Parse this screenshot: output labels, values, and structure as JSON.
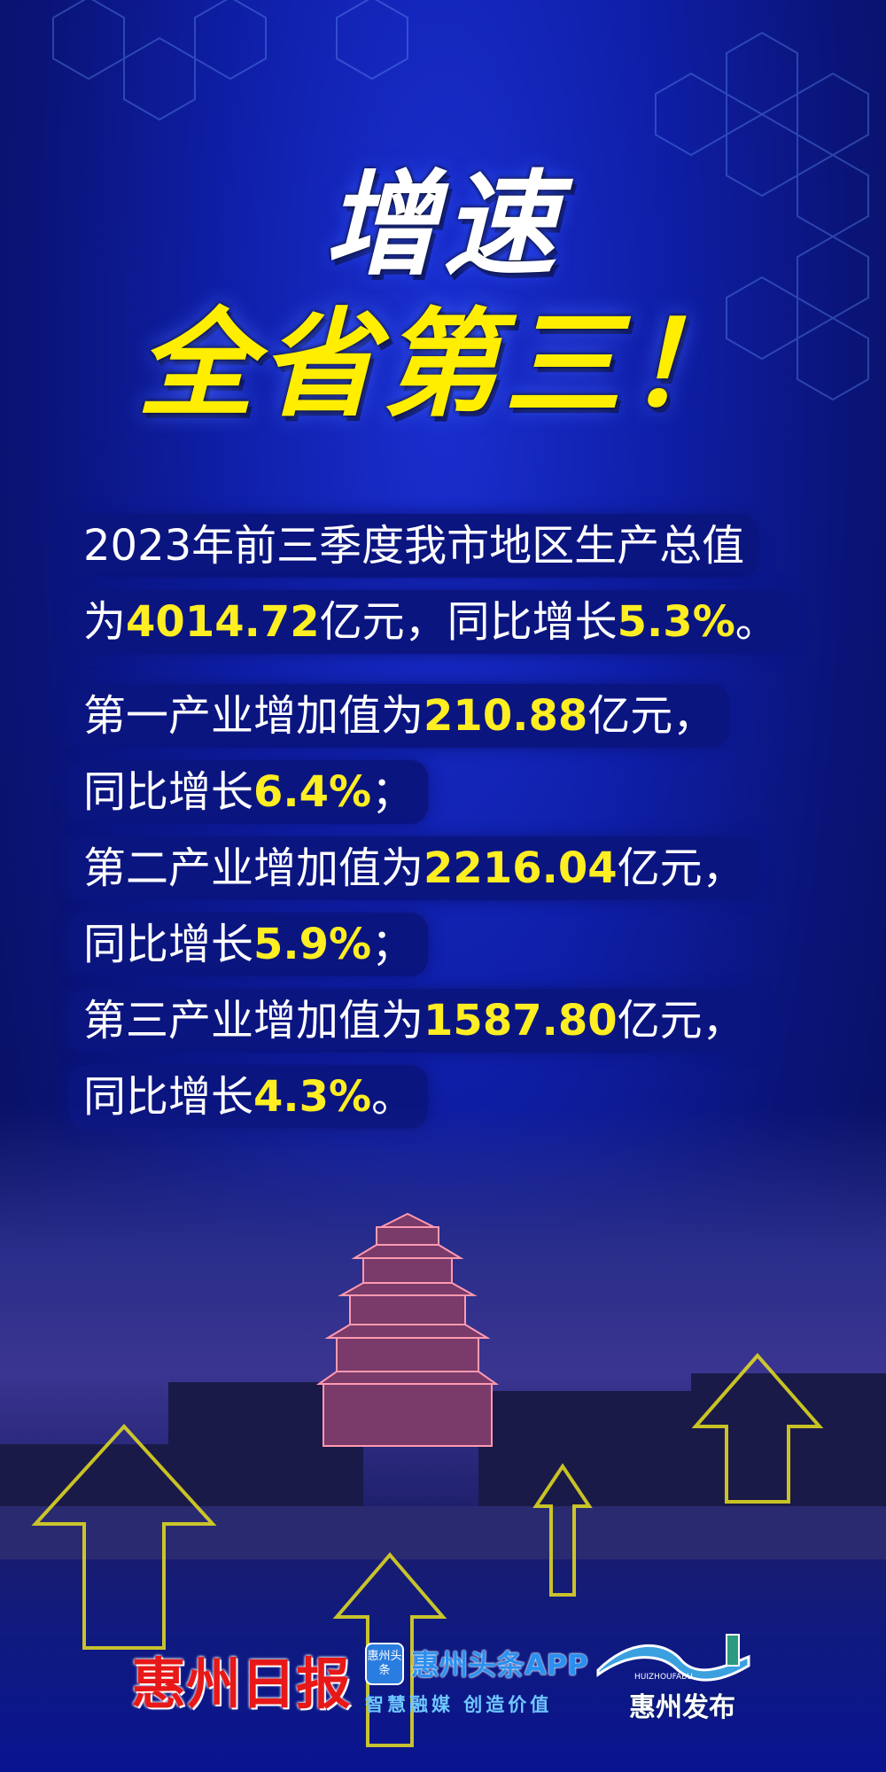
{
  "headline": {
    "line1": "增速",
    "line2": "全省第三！"
  },
  "body": {
    "p1a": "2023年前三季度我市地区生产总值",
    "p1b_pre": "为",
    "p1b_val": "4014.72",
    "p1b_mid": "亿元，同比增长",
    "p1b_pct": "5.3%",
    "p1b_end": "。",
    "rows": [
      {
        "pre": "第一产业增加值为",
        "val": "210.88",
        "unit": "亿元，",
        "g_pre": "同比增长",
        "pct": "6.4%",
        "end": "；"
      },
      {
        "pre": "第二产业增加值为",
        "val": "2216.04",
        "unit": "亿元，",
        "g_pre": "同比增长",
        "pct": "5.9%",
        "end": "；"
      },
      {
        "pre": "第三产业增加值为",
        "val": "1587.80",
        "unit": "亿元，",
        "g_pre": "同比增长",
        "pct": "4.3%",
        "end": "。"
      }
    ]
  },
  "logos": {
    "huizhou_daily": "惠州日报",
    "toutiao_icon": "惠州头条",
    "toutiao_name": "惠州头条APP",
    "toutiao_slogan": "智慧融媒 创造价值",
    "fabu_sub": "HUIZHOUFABU",
    "fabu_name": "惠州发布"
  },
  "colors": {
    "highlight": "#ffee22",
    "background": "#0f1fa8",
    "arrow": "#e8e020"
  }
}
